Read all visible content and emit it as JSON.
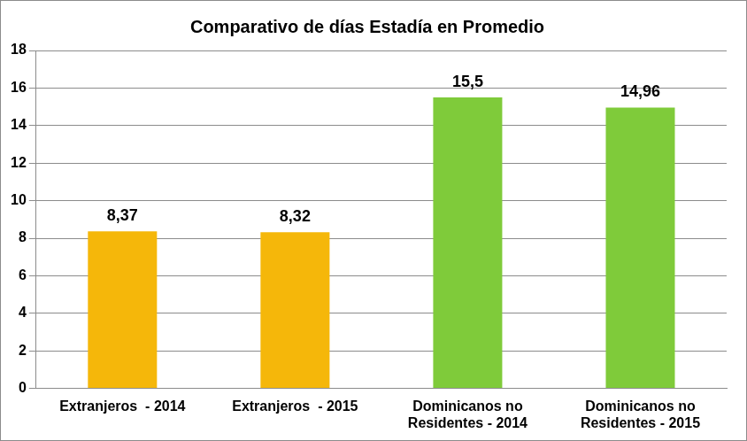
{
  "chart_data": {
    "type": "bar",
    "title": "Comparativo de días Estadía en Promedio",
    "categories": [
      [
        "Extranjeros  - 2014"
      ],
      [
        "Extranjeros  - 2015"
      ],
      [
        "Dominicanos no",
        "Residentes - 2014"
      ],
      [
        "Dominicanos no",
        "Residentes - 2015"
      ]
    ],
    "values": [
      8.37,
      8.32,
      15.5,
      14.96
    ],
    "value_labels": [
      "8,37",
      "8,32",
      "15,5",
      "14,96"
    ],
    "colors": [
      "#f5b70a",
      "#f5b70a",
      "#7fcb3a",
      "#7fcb3a"
    ],
    "ylim": [
      0,
      18
    ],
    "yticks": [
      0,
      2,
      4,
      6,
      8,
      10,
      12,
      14,
      16,
      18
    ],
    "grid": true,
    "data_labels": true
  }
}
